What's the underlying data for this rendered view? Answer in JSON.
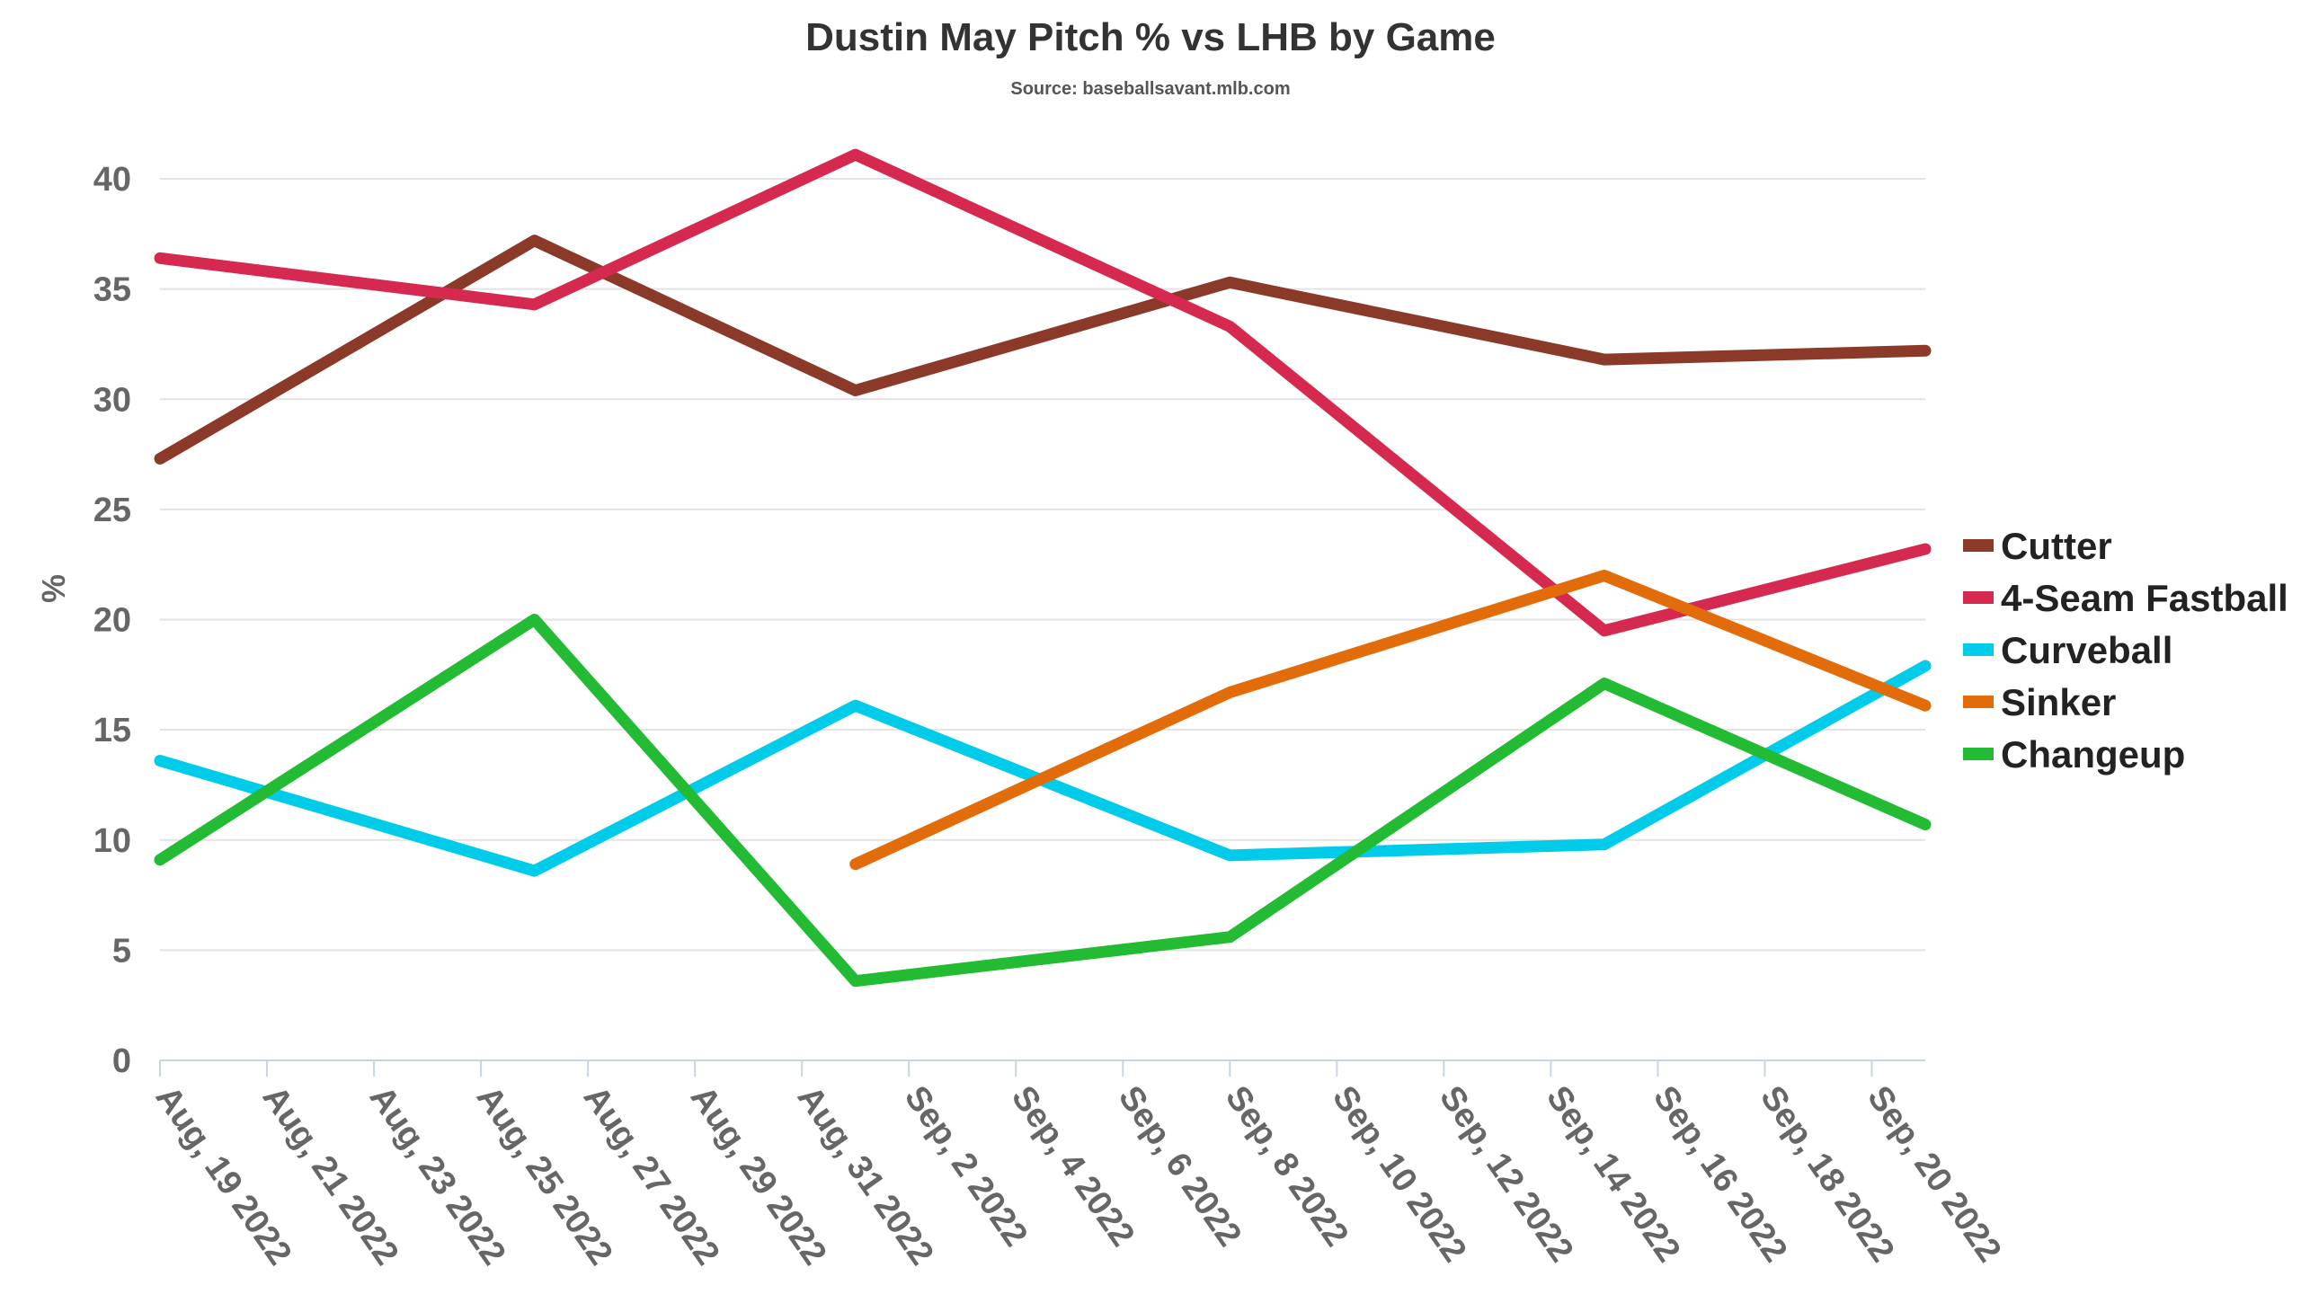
{
  "chart_data": {
    "type": "line",
    "title": "Dustin May Pitch % vs LHB by Game",
    "subtitle": "Source: baseballsavant.mlb.com",
    "xlabel": "",
    "ylabel": "%",
    "ylim": [
      0,
      42
    ],
    "yticks": [
      0,
      5,
      10,
      15,
      20,
      25,
      30,
      35,
      40
    ],
    "x_range": [
      "2022-08-19",
      "2022-09-21"
    ],
    "xtick_dates": [
      "2022-08-19",
      "2022-08-21",
      "2022-08-23",
      "2022-08-25",
      "2022-08-27",
      "2022-08-29",
      "2022-08-31",
      "2022-09-02",
      "2022-09-04",
      "2022-09-06",
      "2022-09-08",
      "2022-09-10",
      "2022-09-12",
      "2022-09-14",
      "2022-09-16",
      "2022-09-18",
      "2022-09-20"
    ],
    "xtick_labels": [
      "Aug, 19 2022",
      "Aug, 21 2022",
      "Aug, 23 2022",
      "Aug, 25 2022",
      "Aug, 27 2022",
      "Aug, 29 2022",
      "Aug, 31 2022",
      "Sep, 2 2022",
      "Sep, 4 2022",
      "Sep, 6 2022",
      "Sep, 8 2022",
      "Sep, 10 2022",
      "Sep, 12 2022",
      "Sep, 14 2022",
      "Sep, 16 2022",
      "Sep, 18 2022",
      "Sep, 20 2022"
    ],
    "x": [
      "2022-08-19",
      "2022-08-26",
      "2022-09-01",
      "2022-09-08",
      "2022-09-15",
      "2022-09-21"
    ],
    "grid": true,
    "legend_position": "right",
    "series": [
      {
        "name": "Cutter",
        "color": "#8b3a2a",
        "values": [
          27.3,
          37.2,
          30.4,
          35.3,
          31.8,
          32.2
        ]
      },
      {
        "name": "4-Seam Fastball",
        "color": "#d6294f",
        "values": [
          36.4,
          34.3,
          41.1,
          33.3,
          19.5,
          23.2
        ]
      },
      {
        "name": "Curveball",
        "color": "#00ccea",
        "values": [
          13.6,
          8.6,
          16.1,
          9.3,
          9.8,
          17.9
        ]
      },
      {
        "name": "Sinker",
        "color": "#e36c0a",
        "values": [
          null,
          null,
          8.9,
          16.7,
          22.0,
          16.1
        ]
      },
      {
        "name": "Changeup",
        "color": "#22bb33",
        "values": [
          9.1,
          20.0,
          3.6,
          5.6,
          17.1,
          10.7
        ]
      }
    ]
  }
}
